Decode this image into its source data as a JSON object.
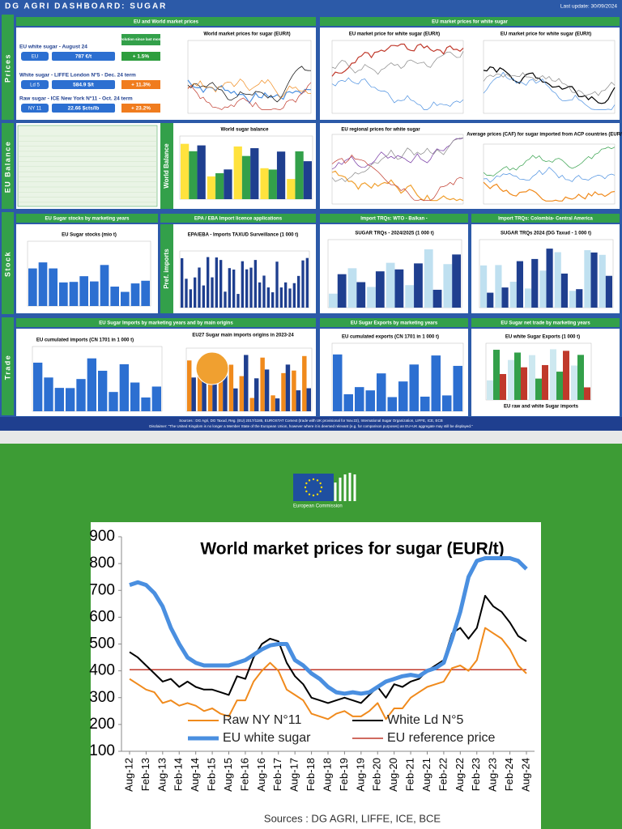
{
  "header": {
    "title": "DG AGRI DASHBOARD: SUGAR",
    "last_update": "Last update: 30/09/2024"
  },
  "sections": [
    "Prices",
    "EU Balance",
    "Stock",
    "Trade"
  ],
  "sub_sections": [
    "World Balance",
    "Pref. imports"
  ],
  "panel_headers": [
    "EU and World market prices",
    "EU market prices  for white sugar",
    "EU Sugar stocks by marketing years",
    "EPA / EBA Import licence applications",
    "Import TRQs: WTO - Balkan -",
    "Import TRQs: Colombia- Central America",
    "EU Sugar Imports by marketing years and by main origins",
    "EU Sugar Exports by marketing years",
    "EU Sugar net trade by marketing years"
  ],
  "evolution_label": "Evolution since last month",
  "price_boxes": [
    {
      "title": "EU white sugar - August 24",
      "code": "EU",
      "price": "787 €/t",
      "change": "+ 1.5%"
    },
    {
      "title": "White sugar - LIFFE London N°5 - Dec. 24 term",
      "code": "Ld 5",
      "price": "584.9 $/t",
      "change": "+ 11.3%"
    },
    {
      "title": "Raw sugar - ICE New York N°11 - Oct. 24 term",
      "code": "NY 11",
      "price": "22.66 $cts/lb",
      "change": "+ 23.2%"
    }
  ],
  "mini_chart_titles": [
    "World market prices for sugar (EUR/t)",
    "EU market price for white sugar (EUR/t)",
    "EU market price for white sugar (EUR/t)",
    "World sugar balance",
    "EU regional prices for white sugar",
    "Average prices (CAF) for sugar imported from ACP countries (EUR/t)",
    "EU Sugar stocks (mio t)",
    "EPA/EBA - Imports TAXUD Surveillance (1 000 t)",
    "SUGAR TRQs - 2024/2025 (1 000 t)",
    "SUGAR TRQs 2024 (DG Taxud - 1 000 t)",
    "EU cumulated imports (CN 1701 in 1 000 t)",
    "EU27 Sugar main imports origins in 2023-24",
    "EU cumulated exports (CN 1701 in 1 000 t)",
    "EU white Sugar Exports (1 000 t)",
    "EU raw and white Sugar imports"
  ],
  "footer": {
    "sources": "Sources : DG Agri, DG Taxud, Reg. (EU) 2017/1185, EUROSTAT Comext (trade with UK provisional for Nov.22), International Sugar Organization, LIFFE, ICE, ECB",
    "disclaimer": "Disclaimer: \"The United Kingdom is no longer a Member State of the European Union, however where it is deemed relevant (e.g. for comparison purposes) an EU+UK aggregate may still be displayed.\""
  },
  "logo_text": "European Commission",
  "chart_data": {
    "type": "line",
    "title": "World market prices for sugar (EUR/t)",
    "source": "Sources : DG AGRI, LIFFE, ICE, BCE",
    "categories": [
      "Aug-12",
      null,
      "Feb-13",
      null,
      "Aug-13",
      null,
      "Feb-14",
      null,
      "Aug-14",
      null,
      "Feb-15",
      null,
      "Aug-15",
      null,
      "Feb-16",
      null,
      "Aug-16",
      null,
      "Feb-17",
      null,
      "Aug-17",
      null,
      "Feb-18",
      null,
      "Aug-18",
      null,
      "Feb-19",
      null,
      "Aug-19",
      null,
      "Feb-20",
      null,
      "Aug-20",
      null,
      "Feb-21",
      null,
      "Aug-21",
      null,
      "Feb-22",
      null,
      "Aug-22",
      null,
      "Feb-23",
      null,
      "Aug-23",
      null,
      "Feb-24",
      null,
      "Aug-24"
    ],
    "series": [
      {
        "name": "Raw NY N°11",
        "color": "#f08a1c",
        "width": 2,
        "values": [
          370,
          350,
          330,
          320,
          280,
          290,
          270,
          280,
          270,
          250,
          260,
          240,
          230,
          290,
          290,
          360,
          400,
          430,
          400,
          330,
          310,
          290,
          240,
          230,
          220,
          240,
          250,
          230,
          230,
          250,
          280,
          220,
          260,
          260,
          300,
          320,
          340,
          350,
          360,
          410,
          420,
          400,
          440,
          560,
          540,
          520,
          480,
          420,
          390
        ]
      },
      {
        "name": "White Ld N°5",
        "color": "#000000",
        "width": 2,
        "values": [
          470,
          450,
          420,
          390,
          360,
          370,
          340,
          360,
          340,
          330,
          330,
          320,
          310,
          380,
          370,
          450,
          500,
          520,
          510,
          430,
          380,
          350,
          300,
          290,
          280,
          290,
          300,
          290,
          280,
          310,
          340,
          300,
          350,
          340,
          360,
          370,
          400,
          420,
          440,
          540,
          560,
          520,
          560,
          680,
          640,
          620,
          580,
          530,
          510
        ]
      },
      {
        "name": "EU white sugar",
        "color": "#4a8fe0",
        "width": 5,
        "values": [
          720,
          730,
          720,
          690,
          640,
          560,
          500,
          450,
          430,
          420,
          420,
          420,
          420,
          430,
          440,
          460,
          480,
          495,
          500,
          500,
          440,
          420,
          390,
          370,
          340,
          320,
          315,
          320,
          315,
          320,
          340,
          360,
          370,
          380,
          385,
          380,
          400,
          410,
          430,
          520,
          620,
          750,
          810,
          820,
          820,
          820,
          820,
          810,
          780
        ]
      },
      {
        "name": "EU reference price",
        "color": "#c0392b",
        "width": 1.5,
        "values": [
          404,
          404,
          404,
          404,
          404,
          404,
          404,
          404,
          404,
          404,
          404,
          404,
          404,
          404,
          404,
          404,
          404,
          404,
          404,
          404,
          404,
          404,
          404,
          404,
          404,
          404,
          404,
          404,
          404,
          404,
          404,
          404,
          404,
          404,
          404,
          404,
          404,
          404,
          404,
          404,
          404,
          404,
          404,
          404,
          404,
          404,
          404,
          404,
          404
        ]
      }
    ],
    "ylim": [
      100,
      900
    ],
    "yticks": [
      100,
      200,
      300,
      400,
      500,
      600,
      700,
      800,
      900
    ],
    "grid": false,
    "legend": "bottom-left"
  }
}
